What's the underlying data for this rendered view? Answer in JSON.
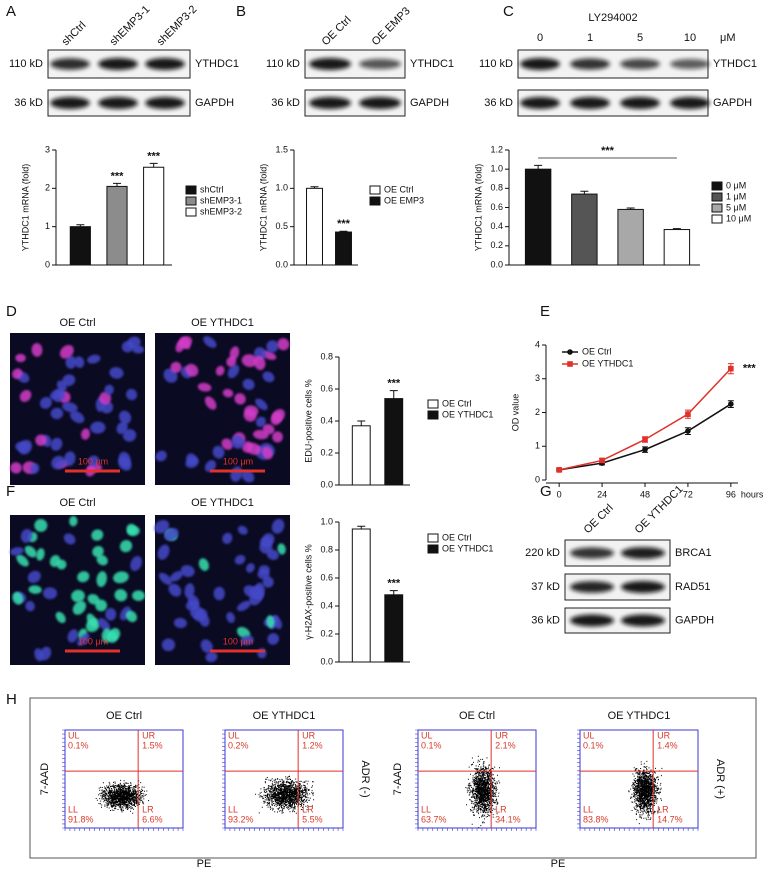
{
  "labels": [
    "A",
    "B",
    "C",
    "D",
    "E",
    "F",
    "G",
    "H"
  ],
  "blots": {
    "A": {
      "lanes": [
        "shCtrl",
        "shEMP3-1",
        "shEMP3-2"
      ],
      "rows": [
        {
          "size": "110 kD",
          "protein": "YTHDC1"
        },
        {
          "size": "36 kD",
          "protein": "GAPDH"
        }
      ]
    },
    "B": {
      "lanes": [
        "OE Ctrl",
        "OE EMP3"
      ],
      "rows": [
        {
          "size": "110 kD",
          "protein": "YTHDC1"
        },
        {
          "size": "36 kD",
          "protein": "GAPDH"
        }
      ]
    },
    "C": {
      "treatment": "LY294002",
      "unit": "μM",
      "lanes": [
        "0",
        "1",
        "5",
        "10"
      ],
      "rows": [
        {
          "size": "110 kD",
          "protein": "YTHDC1"
        },
        {
          "size": "36 kD",
          "protein": "GAPDH"
        }
      ]
    },
    "G": {
      "lanes": [
        "OE Ctrl",
        "OE YTHDC1"
      ],
      "rows": [
        {
          "size": "220 kD",
          "protein": "BRCA1"
        },
        {
          "size": "37 kD",
          "protein": "RAD51"
        },
        {
          "size": "36 kD",
          "protein": "GAPDH"
        }
      ]
    }
  },
  "images": {
    "D": {
      "titles": [
        "OE Ctrl",
        "OE YTHDC1"
      ],
      "scale_bar": "100 μm"
    },
    "F": {
      "titles": [
        "OE Ctrl",
        "OE YTHDC1"
      ],
      "scale_bar": "100 μm"
    }
  },
  "chart_data": [
    {
      "type": "bar",
      "ylabel": "YTHDC1 mRNA (fold)",
      "ylim": [
        0,
        3
      ],
      "yticks": [
        0,
        1,
        2,
        3
      ],
      "series": [
        {
          "name": "shCtrl",
          "color": "#111111",
          "values": [
            1.0
          ],
          "errors": [
            0.05
          ]
        },
        {
          "name": "shEMP3-1",
          "color": "#8c8c8c",
          "values": [
            2.05
          ],
          "errors": [
            0.08
          ],
          "annotation": "***"
        },
        {
          "name": "shEMP3-2",
          "color": "#ffffff",
          "values": [
            2.55
          ],
          "errors": [
            0.1
          ],
          "annotation": "***"
        }
      ]
    },
    {
      "type": "bar",
      "ylabel": "YTHDC1 mRNA (fold)",
      "ylim": [
        0,
        1.5
      ],
      "yticks": [
        {
          "value": 0,
          "label": "0.0"
        },
        0.5,
        {
          "value": 1,
          "label": "1.0"
        },
        1.5
      ],
      "series": [
        {
          "name": "OE Ctrl",
          "color": "#ffffff",
          "values": [
            1.0
          ],
          "errors": [
            0.02
          ]
        },
        {
          "name": "OE EMP3",
          "color": "#111111",
          "values": [
            0.43
          ],
          "errors": [
            0.01
          ],
          "annotation": "***"
        }
      ]
    },
    {
      "type": "bar",
      "ylabel": "YTHDC1 mRNA (fold)",
      "ylim": [
        0,
        1.2
      ],
      "yticks": [
        {
          "value": 0,
          "label": "0.0"
        },
        0.2,
        0.4,
        0.6,
        0.8,
        {
          "value": 1,
          "label": "1.0"
        },
        1.2
      ],
      "annotation": "***",
      "series": [
        {
          "name": "0 μM",
          "color": "#111111",
          "values": [
            1.0
          ],
          "errors": [
            0.04
          ]
        },
        {
          "name": "1 μM",
          "color": "#555555",
          "values": [
            0.74
          ],
          "errors": [
            0.03
          ]
        },
        {
          "name": "5 μM",
          "color": "#a8a8a8",
          "values": [
            0.58
          ],
          "errors": [
            0.015
          ]
        },
        {
          "name": "10 μM",
          "color": "#ffffff",
          "values": [
            0.37
          ],
          "errors": [
            0.01
          ]
        }
      ]
    },
    {
      "type": "bar",
      "ylabel": "EDU-positive cells %",
      "ylim": [
        0,
        0.8
      ],
      "yticks": [
        {
          "value": 0,
          "label": "0.0"
        },
        0.2,
        0.4,
        0.6,
        0.8
      ],
      "series": [
        {
          "name": "OE Ctrl",
          "color": "#ffffff",
          "values": [
            0.37
          ],
          "errors": [
            0.03
          ]
        },
        {
          "name": "OE YTHDC1",
          "color": "#111111",
          "values": [
            0.54
          ],
          "errors": [
            0.05
          ],
          "annotation": "***"
        }
      ]
    },
    {
      "type": "line",
      "ylabel": "OD value",
      "xlabel": "hours",
      "xlim": [
        -4,
        100
      ],
      "xticks": [
        0,
        24,
        48,
        72,
        96
      ],
      "ylim": [
        0,
        4
      ],
      "yticks": [
        0,
        1,
        2,
        3,
        4
      ],
      "annotation": "***",
      "x": [
        0,
        24,
        48,
        72,
        96
      ],
      "series": [
        {
          "name": "OE Ctrl",
          "color": "#111111",
          "values": [
            0.3,
            0.5,
            0.9,
            1.45,
            2.25
          ],
          "errors": [
            0.03,
            0.05,
            0.08,
            0.1,
            0.1
          ]
        },
        {
          "name": "OE YTHDC1",
          "color": "#e0312a",
          "values": [
            0.3,
            0.58,
            1.2,
            1.95,
            3.3
          ],
          "errors": [
            0.03,
            0.05,
            0.08,
            0.12,
            0.15
          ]
        }
      ]
    },
    {
      "type": "bar",
      "ylabel": "γ-H2AX-positive cells %",
      "ylim": [
        0,
        1
      ],
      "yticks": [
        {
          "value": 0,
          "label": "0.0"
        },
        0.2,
        0.4,
        0.6,
        0.8,
        {
          "value": 1,
          "label": "1.0"
        }
      ],
      "series": [
        {
          "name": "OE Ctrl",
          "color": "#ffffff",
          "values": [
            0.95
          ],
          "errors": [
            0.02
          ]
        },
        {
          "name": "OE YTHDC1",
          "color": "#111111",
          "values": [
            0.48
          ],
          "errors": [
            0.03
          ],
          "annotation": "***"
        }
      ]
    }
  ],
  "flow": {
    "y_label": "7-AAD",
    "x_label": "PE",
    "groups": [
      {
        "condition": "ADR (-)",
        "plots": [
          {
            "title": "OE Ctrl",
            "quadrants": [
              {
                "name": "UL",
                "value": "0.1%"
              },
              {
                "name": "UR",
                "value": "1.5%"
              },
              {
                "name": "LL",
                "value": "91.8%"
              },
              {
                "name": "LR",
                "value": "6.6%"
              }
            ]
          },
          {
            "title": "OE YTHDC1",
            "quadrants": [
              {
                "name": "UL",
                "value": "0.2%"
              },
              {
                "name": "UR",
                "value": "1.2%"
              },
              {
                "name": "LL",
                "value": "93.2%"
              },
              {
                "name": "LR",
                "value": "5.5%"
              }
            ]
          }
        ]
      },
      {
        "condition": "ADR (+)",
        "plots": [
          {
            "title": "OE Ctrl",
            "quadrants": [
              {
                "name": "UL",
                "value": "0.1%"
              },
              {
                "name": "UR",
                "value": "2.1%"
              },
              {
                "name": "LL",
                "value": "63.7%"
              },
              {
                "name": "LR",
                "value": "34.1%"
              }
            ]
          },
          {
            "title": "OE YTHDC1",
            "quadrants": [
              {
                "name": "UL",
                "value": "0.1%"
              },
              {
                "name": "UR",
                "value": "1.4%"
              },
              {
                "name": "LL",
                "value": "83.8%"
              },
              {
                "name": "LR",
                "value": "14.7%"
              }
            ]
          }
        ]
      }
    ]
  }
}
